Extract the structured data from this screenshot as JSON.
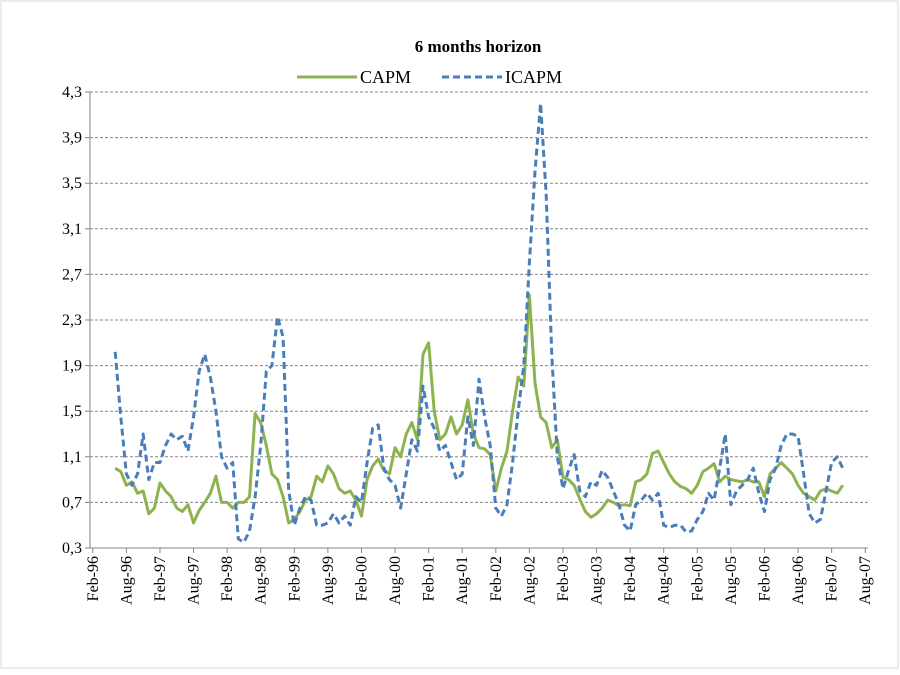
{
  "chart_data": {
    "type": "line",
    "title": "6 months horizon",
    "categories": [
      "Feb-96",
      null,
      null,
      null,
      null,
      null,
      "Aug-96",
      null,
      null,
      null,
      null,
      null,
      "Feb-97",
      null,
      null,
      null,
      null,
      null,
      "Aug-97",
      null,
      null,
      null,
      null,
      null,
      "Feb-98",
      null,
      null,
      null,
      null,
      null,
      "Aug-98",
      null,
      null,
      null,
      null,
      null,
      "Feb-99",
      null,
      null,
      null,
      null,
      null,
      "Aug-99",
      null,
      null,
      null,
      null,
      null,
      "Feb-00",
      null,
      null,
      null,
      null,
      null,
      "Aug-00",
      null,
      null,
      null,
      null,
      null,
      "Feb-01",
      null,
      null,
      null,
      null,
      null,
      "Aug-01",
      null,
      null,
      null,
      null,
      null,
      "Feb-02",
      null,
      null,
      null,
      null,
      null,
      "Aug-02",
      null,
      null,
      null,
      null,
      null,
      "Feb-03",
      null,
      null,
      null,
      null,
      null,
      "Aug-03",
      null,
      null,
      null,
      null,
      null,
      "Feb-04",
      null,
      null,
      null,
      null,
      null,
      "Aug-04",
      null,
      null,
      null,
      null,
      null,
      "Feb-05",
      null,
      null,
      null,
      null,
      null,
      "Aug-05",
      null,
      null,
      null,
      null,
      null,
      "Feb-06",
      null,
      null,
      null,
      null,
      null,
      "Aug-06",
      null,
      null,
      null,
      null,
      null,
      "Feb-07",
      null,
      null,
      null,
      null,
      null,
      "Aug-07"
    ],
    "series": [
      {
        "name": "CAPM",
        "color": "#8db350",
        "line_style": "solid",
        "values": [
          null,
          null,
          null,
          null,
          1.0,
          0.97,
          0.85,
          0.88,
          0.78,
          0.8,
          0.6,
          0.65,
          0.87,
          0.8,
          0.75,
          0.65,
          0.62,
          0.68,
          0.52,
          0.63,
          0.7,
          0.78,
          0.93,
          0.7,
          0.7,
          0.65,
          0.7,
          0.7,
          0.75,
          1.48,
          1.4,
          1.2,
          0.95,
          0.9,
          0.75,
          0.52,
          0.55,
          0.62,
          0.72,
          0.75,
          0.93,
          0.88,
          1.02,
          0.95,
          0.82,
          0.78,
          0.8,
          0.72,
          0.58,
          0.9,
          1.02,
          1.08,
          0.98,
          0.95,
          1.18,
          1.1,
          1.3,
          1.4,
          1.25,
          2.0,
          2.1,
          1.5,
          1.25,
          1.3,
          1.45,
          1.3,
          1.38,
          1.6,
          1.3,
          1.18,
          1.17,
          1.12,
          0.8,
          1.0,
          1.15,
          1.5,
          1.8,
          1.72,
          2.52,
          1.75,
          1.45,
          1.4,
          1.18,
          1.25,
          0.92,
          0.9,
          0.85,
          0.73,
          0.62,
          0.57,
          0.6,
          0.65,
          0.72,
          0.7,
          0.67,
          0.68,
          0.67,
          0.88,
          0.9,
          0.95,
          1.13,
          1.15,
          1.05,
          0.95,
          0.88,
          0.84,
          0.82,
          0.78,
          0.85,
          0.97,
          1.0,
          1.04,
          0.88,
          0.93,
          0.9,
          0.89,
          0.88,
          0.9,
          0.88,
          0.88,
          0.75,
          0.95,
          1.0,
          1.05,
          1.0,
          0.95,
          0.85,
          0.78,
          0.75,
          0.72,
          0.8,
          0.82,
          0.8,
          0.78,
          0.85,
          null,
          null,
          null,
          null
        ]
      },
      {
        "name": "ICAPM",
        "color": "#4a7ebb",
        "line_style": "dashed",
        "values": [
          null,
          null,
          null,
          null,
          2.02,
          1.45,
          0.95,
          0.85,
          0.95,
          1.3,
          0.9,
          1.05,
          1.05,
          1.2,
          1.3,
          1.25,
          1.28,
          1.15,
          1.45,
          1.85,
          2.0,
          1.8,
          1.5,
          1.1,
          1.0,
          1.05,
          0.38,
          0.35,
          0.45,
          0.75,
          1.2,
          1.85,
          1.9,
          2.33,
          2.15,
          0.8,
          0.5,
          0.65,
          0.75,
          0.72,
          0.5,
          0.5,
          0.52,
          0.6,
          0.52,
          0.58,
          0.5,
          0.75,
          0.7,
          1.05,
          1.35,
          1.38,
          1.0,
          0.9,
          0.85,
          0.65,
          0.95,
          1.25,
          1.15,
          1.72,
          1.45,
          1.35,
          1.15,
          1.2,
          1.05,
          0.9,
          0.95,
          1.45,
          1.2,
          1.78,
          1.45,
          1.2,
          0.65,
          0.58,
          0.68,
          1.05,
          1.5,
          1.9,
          2.8,
          3.6,
          4.2,
          3.4,
          2.0,
          1.1,
          0.82,
          0.98,
          1.12,
          0.8,
          0.75,
          0.88,
          0.85,
          0.98,
          0.92,
          0.8,
          0.68,
          0.5,
          0.45,
          0.68,
          0.72,
          0.78,
          0.72,
          0.78,
          0.5,
          0.48,
          0.5,
          0.5,
          0.44,
          0.45,
          0.55,
          0.62,
          0.78,
          0.72,
          1.0,
          1.3,
          0.68,
          0.8,
          0.85,
          0.9,
          1.0,
          0.78,
          0.62,
          0.9,
          1.0,
          1.2,
          1.3,
          1.3,
          1.28,
          0.95,
          0.6,
          0.52,
          0.55,
          0.8,
          1.05,
          1.1,
          1.0,
          null,
          null,
          null,
          null
        ]
      }
    ],
    "ylim": [
      0.3,
      4.3
    ],
    "yticks": [
      {
        "value": 0.3,
        "label": "0,3"
      },
      {
        "value": 0.7,
        "label": "0,7"
      },
      {
        "value": 1.1,
        "label": "1,1"
      },
      {
        "value": 1.5,
        "label": "1,5"
      },
      {
        "value": 1.9,
        "label": "1,9"
      },
      {
        "value": 2.3,
        "label": "2,3"
      },
      {
        "value": 2.7,
        "label": "2,7"
      },
      {
        "value": 3.1,
        "label": "3,1"
      },
      {
        "value": 3.5,
        "label": "3,5"
      },
      {
        "value": 3.9,
        "label": "3,9"
      },
      {
        "value": 4.3,
        "label": "4,3"
      }
    ],
    "grid": true,
    "legend": "top"
  }
}
